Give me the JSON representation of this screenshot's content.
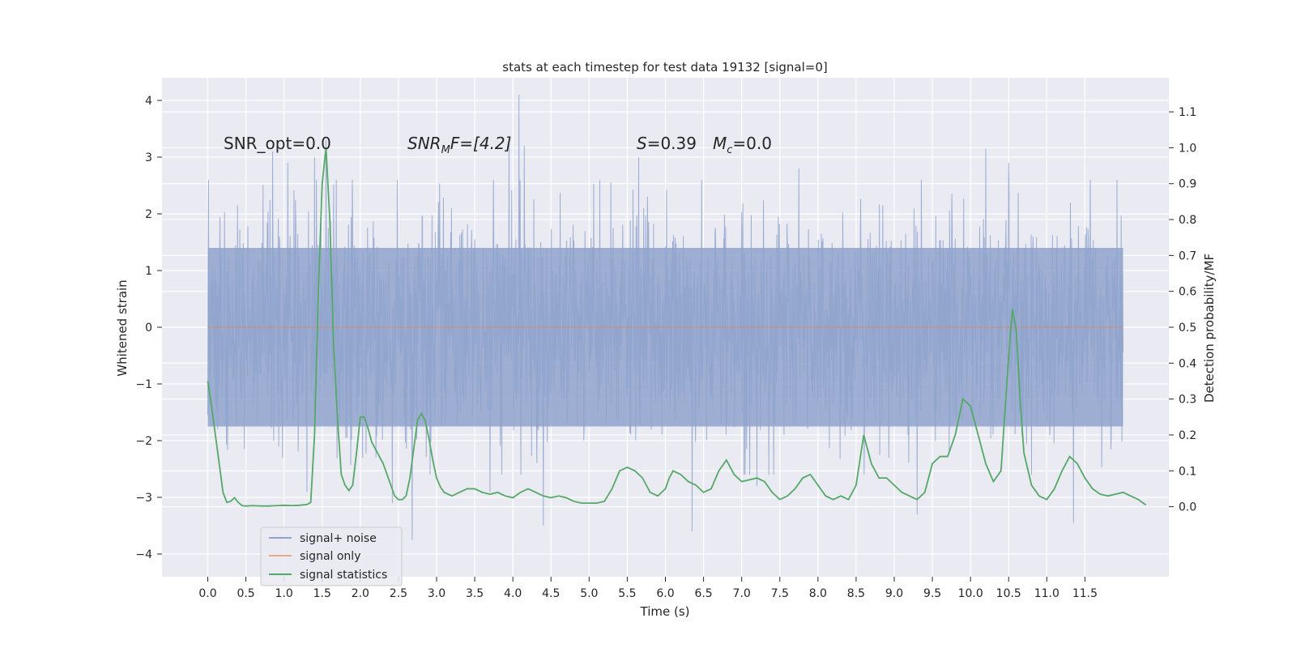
{
  "chart_data": {
    "type": "line",
    "title": "stats at each timestep for test data 19132 [signal=0]",
    "xlabel": "Time (s)",
    "ylabel_left": "Whitened strain",
    "ylabel_right": "Detection probability/MF",
    "xlim": [
      -0.6,
      12.6
    ],
    "ylim_left": [
      -4.4,
      4.4
    ],
    "ylim_right": [
      -0.195,
      1.195
    ],
    "x_ticks": [
      "0.0",
      "0.5",
      "1.0",
      "1.5",
      "2.0",
      "2.5",
      "3.0",
      "3.5",
      "4.0",
      "4.5",
      "5.0",
      "5.5",
      "6.0",
      "6.5",
      "7.0",
      "7.5",
      "8.0",
      "8.5",
      "9.0",
      "9.5",
      "10.0",
      "10.5",
      "11.0",
      "11.5"
    ],
    "y_ticks_left": [
      "4",
      "3",
      "2",
      "1",
      "0",
      "−1",
      "−2",
      "−3",
      "−4"
    ],
    "y_ticks_right": [
      "1.1",
      "1.0",
      "0.9",
      "0.8",
      "0.7",
      "0.6",
      "0.5",
      "0.4",
      "0.3",
      "0.2",
      "0.1",
      "0.0"
    ],
    "grid": true,
    "annotations": {
      "snr_opt": "SNR_opt=0.0",
      "snr_mf_main": "SNR",
      "snr_mf_sub": "M",
      "snr_mf_rest": "F=[4.2]",
      "s_main": "S",
      "s_rest": "=0.39",
      "mc_main": "M",
      "mc_sub": "c",
      "mc_rest": "=0.0"
    },
    "legend": {
      "position": "lower-left",
      "entries": [
        "signal+ noise",
        "signal only",
        "signal statistics"
      ]
    },
    "series": [
      {
        "name": "signal+ noise",
        "axis": "left",
        "color": "#8fa3cc",
        "x_range": [
          0.0,
          12.0
        ],
        "band": [
          -1.75,
          1.4
        ],
        "envelope_peaks": [
          {
            "x": 0.85,
            "y": 3.1
          },
          {
            "x": 1.05,
            "y": 2.9
          },
          {
            "x": 1.4,
            "y": 3.0
          },
          {
            "x": 1.55,
            "y": 3.3
          },
          {
            "x": 3.95,
            "y": 3.3
          },
          {
            "x": 4.08,
            "y": 4.1
          },
          {
            "x": 4.15,
            "y": 3.2
          },
          {
            "x": 5.65,
            "y": 3.0
          },
          {
            "x": 7.75,
            "y": 2.8
          },
          {
            "x": 10.2,
            "y": 3.15
          },
          {
            "x": 10.5,
            "y": 2.9
          },
          {
            "x": 11.35,
            "y": 2.8
          }
        ],
        "envelope_troughs": [
          {
            "x": 2.42,
            "y": -3.1
          },
          {
            "x": 2.68,
            "y": -3.75
          },
          {
            "x": 4.4,
            "y": -3.5
          },
          {
            "x": 6.35,
            "y": -3.6
          },
          {
            "x": 9.3,
            "y": -3.3
          },
          {
            "x": 11.35,
            "y": -3.45
          },
          {
            "x": 1.3,
            "y": -2.9
          },
          {
            "x": 3.7,
            "y": -2.9
          },
          {
            "x": 7.2,
            "y": -2.8
          }
        ]
      },
      {
        "name": "signal only",
        "axis": "left",
        "color": "#dd8452",
        "x": [
          0.0,
          12.0
        ],
        "values": [
          0.0,
          0.0
        ]
      },
      {
        "name": "signal statistics",
        "axis": "right",
        "color": "#55a868",
        "points": [
          [
            0.0,
            0.35
          ],
          [
            0.05,
            0.28
          ],
          [
            0.1,
            0.2
          ],
          [
            0.15,
            0.12
          ],
          [
            0.2,
            0.04
          ],
          [
            0.25,
            0.012
          ],
          [
            0.3,
            0.015
          ],
          [
            0.35,
            0.025
          ],
          [
            0.4,
            0.012
          ],
          [
            0.45,
            0.003
          ],
          [
            0.5,
            0.002
          ],
          [
            0.6,
            0.003
          ],
          [
            0.7,
            0.002
          ],
          [
            0.8,
            0.002
          ],
          [
            0.9,
            0.003
          ],
          [
            1.0,
            0.004
          ],
          [
            1.1,
            0.003
          ],
          [
            1.2,
            0.004
          ],
          [
            1.3,
            0.006
          ],
          [
            1.35,
            0.012
          ],
          [
            1.4,
            0.2
          ],
          [
            1.45,
            0.6
          ],
          [
            1.5,
            0.9
          ],
          [
            1.55,
            1.0
          ],
          [
            1.6,
            0.8
          ],
          [
            1.65,
            0.45
          ],
          [
            1.7,
            0.25
          ],
          [
            1.75,
            0.09
          ],
          [
            1.8,
            0.06
          ],
          [
            1.85,
            0.045
          ],
          [
            1.9,
            0.06
          ],
          [
            1.95,
            0.15
          ],
          [
            2.0,
            0.25
          ],
          [
            2.05,
            0.25
          ],
          [
            2.1,
            0.22
          ],
          [
            2.15,
            0.18
          ],
          [
            2.2,
            0.16
          ],
          [
            2.25,
            0.14
          ],
          [
            2.3,
            0.12
          ],
          [
            2.35,
            0.09
          ],
          [
            2.4,
            0.06
          ],
          [
            2.45,
            0.03
          ],
          [
            2.5,
            0.02
          ],
          [
            2.55,
            0.02
          ],
          [
            2.6,
            0.03
          ],
          [
            2.65,
            0.08
          ],
          [
            2.7,
            0.16
          ],
          [
            2.75,
            0.24
          ],
          [
            2.8,
            0.26
          ],
          [
            2.85,
            0.24
          ],
          [
            2.9,
            0.19
          ],
          [
            2.95,
            0.13
          ],
          [
            3.0,
            0.08
          ],
          [
            3.05,
            0.055
          ],
          [
            3.1,
            0.04
          ],
          [
            3.2,
            0.03
          ],
          [
            3.3,
            0.04
          ],
          [
            3.4,
            0.05
          ],
          [
            3.5,
            0.05
          ],
          [
            3.6,
            0.04
          ],
          [
            3.7,
            0.035
          ],
          [
            3.8,
            0.04
          ],
          [
            3.9,
            0.03
          ],
          [
            4.0,
            0.025
          ],
          [
            4.1,
            0.04
          ],
          [
            4.2,
            0.05
          ],
          [
            4.3,
            0.04
          ],
          [
            4.4,
            0.03
          ],
          [
            4.5,
            0.025
          ],
          [
            4.6,
            0.03
          ],
          [
            4.7,
            0.025
          ],
          [
            4.8,
            0.015
          ],
          [
            4.9,
            0.01
          ],
          [
            5.0,
            0.01
          ],
          [
            5.1,
            0.01
          ],
          [
            5.2,
            0.015
          ],
          [
            5.3,
            0.05
          ],
          [
            5.4,
            0.1
          ],
          [
            5.5,
            0.11
          ],
          [
            5.6,
            0.1
          ],
          [
            5.7,
            0.08
          ],
          [
            5.8,
            0.04
          ],
          [
            5.9,
            0.03
          ],
          [
            6.0,
            0.05
          ],
          [
            6.05,
            0.08
          ],
          [
            6.1,
            0.1
          ],
          [
            6.2,
            0.09
          ],
          [
            6.3,
            0.07
          ],
          [
            6.4,
            0.06
          ],
          [
            6.5,
            0.04
          ],
          [
            6.6,
            0.05
          ],
          [
            6.7,
            0.1
          ],
          [
            6.8,
            0.13
          ],
          [
            6.9,
            0.09
          ],
          [
            7.0,
            0.07
          ],
          [
            7.1,
            0.075
          ],
          [
            7.2,
            0.08
          ],
          [
            7.3,
            0.07
          ],
          [
            7.4,
            0.04
          ],
          [
            7.5,
            0.02
          ],
          [
            7.6,
            0.03
          ],
          [
            7.7,
            0.05
          ],
          [
            7.8,
            0.08
          ],
          [
            7.9,
            0.09
          ],
          [
            8.0,
            0.06
          ],
          [
            8.1,
            0.03
          ],
          [
            8.2,
            0.02
          ],
          [
            8.3,
            0.03
          ],
          [
            8.4,
            0.02
          ],
          [
            8.5,
            0.06
          ],
          [
            8.6,
            0.2
          ],
          [
            8.7,
            0.12
          ],
          [
            8.8,
            0.08
          ],
          [
            8.9,
            0.08
          ],
          [
            9.0,
            0.06
          ],
          [
            9.1,
            0.04
          ],
          [
            9.2,
            0.03
          ],
          [
            9.3,
            0.02
          ],
          [
            9.4,
            0.04
          ],
          [
            9.5,
            0.12
          ],
          [
            9.6,
            0.14
          ],
          [
            9.7,
            0.14
          ],
          [
            9.8,
            0.2
          ],
          [
            9.9,
            0.3
          ],
          [
            10.0,
            0.28
          ],
          [
            10.1,
            0.2
          ],
          [
            10.2,
            0.12
          ],
          [
            10.3,
            0.07
          ],
          [
            10.4,
            0.1
          ],
          [
            10.5,
            0.42
          ],
          [
            10.55,
            0.55
          ],
          [
            10.6,
            0.49
          ],
          [
            10.65,
            0.3
          ],
          [
            10.7,
            0.15
          ],
          [
            10.8,
            0.06
          ],
          [
            10.9,
            0.03
          ],
          [
            11.0,
            0.02
          ],
          [
            11.1,
            0.05
          ],
          [
            11.2,
            0.1
          ],
          [
            11.3,
            0.14
          ],
          [
            11.4,
            0.12
          ],
          [
            11.5,
            0.08
          ],
          [
            11.6,
            0.05
          ],
          [
            11.7,
            0.035
          ],
          [
            11.8,
            0.03
          ],
          [
            11.9,
            0.035
          ],
          [
            12.0,
            0.04
          ],
          [
            12.1,
            0.03
          ],
          [
            12.2,
            0.02
          ],
          [
            12.3,
            0.005
          ]
        ]
      }
    ]
  }
}
